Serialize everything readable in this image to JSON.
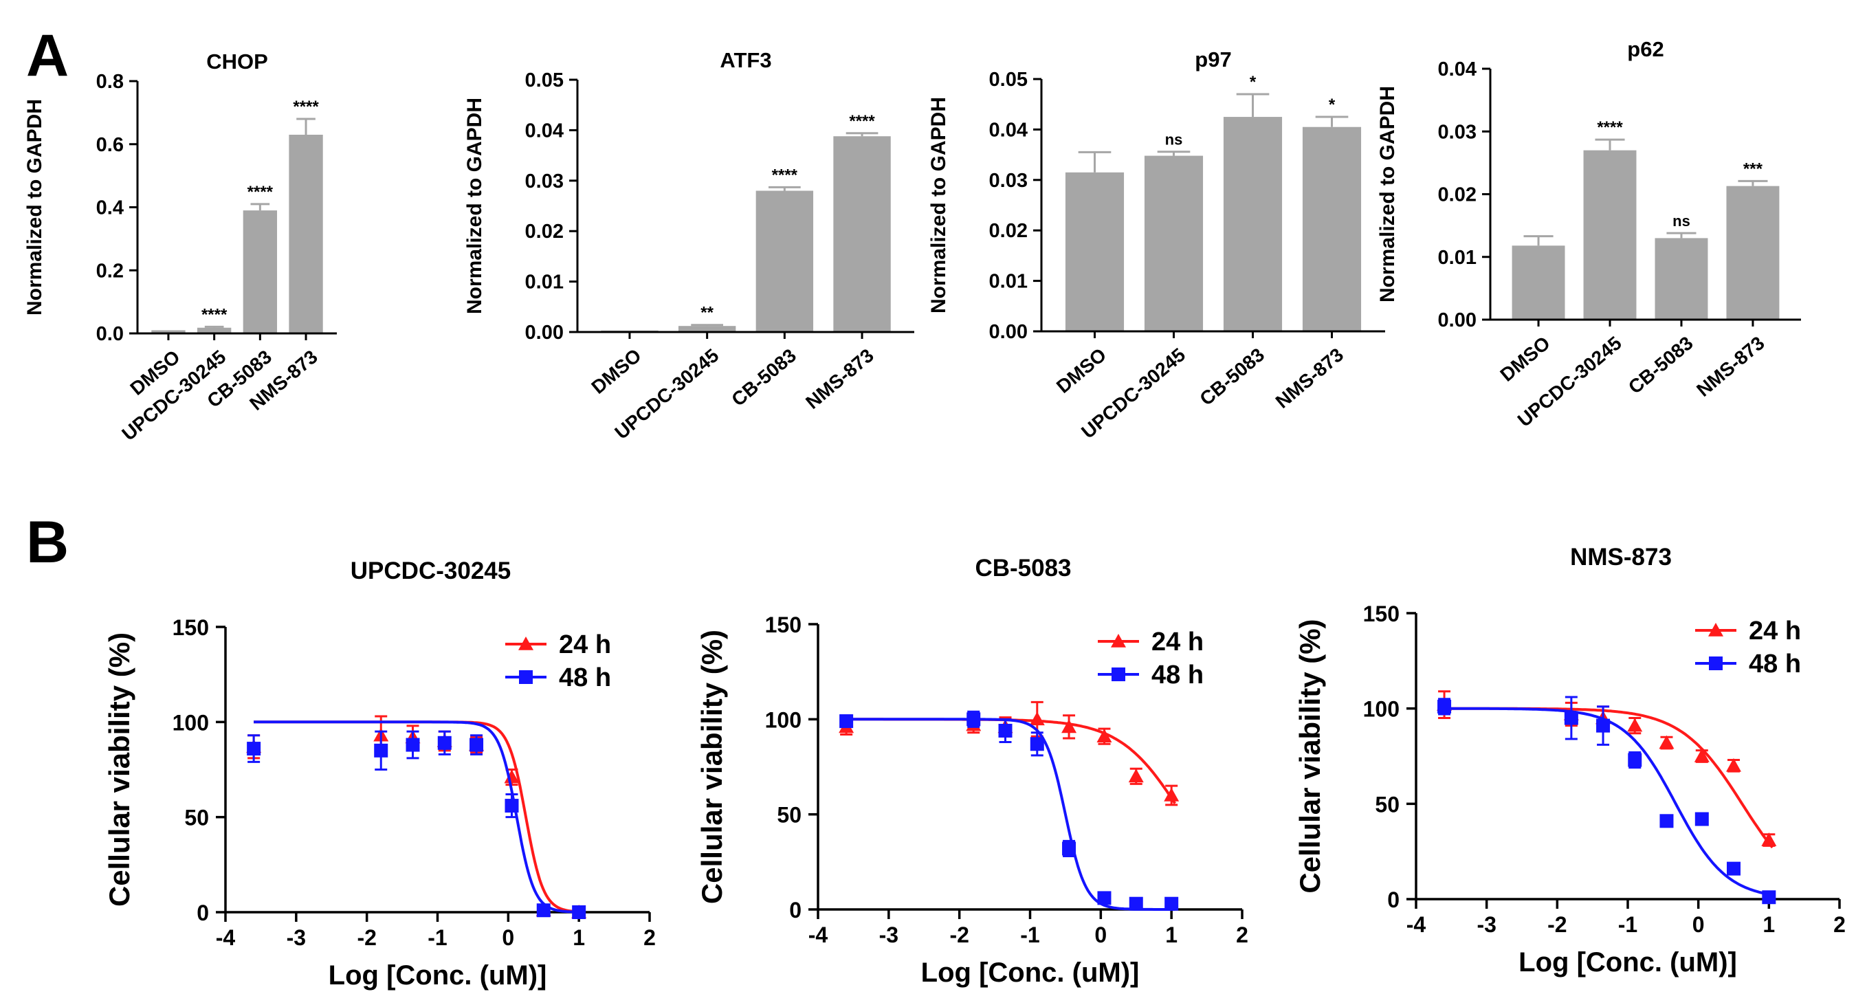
{
  "panel_labels": {
    "a": "A",
    "b": "B"
  },
  "colors": {
    "bar": "#a6a6a6",
    "axis": "#000000",
    "series_24h": "#ff1a1a",
    "series_48h": "#1414ff"
  },
  "chart_data": [
    {
      "type": "bar",
      "title": "CHOP",
      "ylabel": "Normalized to GAPDH",
      "xlabel": "",
      "categories": [
        "DMSO",
        "UPCDC-30245",
        "CB-5083",
        "NMS-873"
      ],
      "values": [
        0.01,
        0.018,
        0.39,
        0.63
      ],
      "errors": [
        0.0,
        0.003,
        0.02,
        0.05
      ],
      "significance": [
        "",
        "****",
        "****",
        "****"
      ],
      "ylim": [
        0,
        0.8
      ],
      "yticks": [
        0.0,
        0.2,
        0.4,
        0.6,
        0.8
      ],
      "ytick_labels": [
        "0.0",
        "0.2",
        "0.4",
        "0.6",
        "0.8"
      ]
    },
    {
      "type": "bar",
      "title": "ATF3",
      "ylabel": "Normalized to GAPDH",
      "xlabel": "",
      "categories": [
        "DMSO",
        "UPCDC-30245",
        "CB-5083",
        "NMS-873"
      ],
      "values": [
        0.0003,
        0.0012,
        0.028,
        0.0388
      ],
      "errors": [
        0.0,
        0.0002,
        0.0007,
        0.0006
      ],
      "significance": [
        "",
        "**",
        "****",
        "****"
      ],
      "ylim": [
        0,
        0.05
      ],
      "yticks": [
        0.0,
        0.01,
        0.02,
        0.03,
        0.04,
        0.05
      ],
      "ytick_labels": [
        "0.00",
        "0.01",
        "0.02",
        "0.03",
        "0.04",
        "0.05"
      ]
    },
    {
      "type": "bar",
      "title": "p97",
      "ylabel": "Normalized to GAPDH",
      "xlabel": "",
      "categories": [
        "DMSO",
        "UPCDC-30245",
        "CB-5083",
        "NMS-873"
      ],
      "values": [
        0.0315,
        0.0348,
        0.0425,
        0.0405
      ],
      "errors": [
        0.004,
        0.0008,
        0.0045,
        0.002
      ],
      "significance": [
        "",
        "ns",
        "*",
        "*"
      ],
      "ylim": [
        0,
        0.05
      ],
      "yticks": [
        0.0,
        0.01,
        0.02,
        0.03,
        0.04,
        0.05
      ],
      "ytick_labels": [
        "0.00",
        "0.01",
        "0.02",
        "0.03",
        "0.04",
        "0.05"
      ]
    },
    {
      "type": "bar",
      "title": "p62",
      "ylabel": "Normalized to GAPDH",
      "xlabel": "",
      "categories": [
        "DMSO",
        "UPCDC-30245",
        "CB-5083",
        "NMS-873"
      ],
      "values": [
        0.0118,
        0.027,
        0.013,
        0.0213
      ],
      "errors": [
        0.0015,
        0.0017,
        0.0008,
        0.0008
      ],
      "significance": [
        "",
        "****",
        "ns",
        "***"
      ],
      "ylim": [
        0,
        0.04
      ],
      "yticks": [
        0.0,
        0.01,
        0.02,
        0.03,
        0.04
      ],
      "ytick_labels": [
        "0.00",
        "0.01",
        "0.02",
        "0.03",
        "0.04"
      ]
    },
    {
      "type": "scatter",
      "title": "UPCDC-30245",
      "xlabel": "Log [Conc. (uM)]",
      "ylabel": "Cellular viability (%)",
      "xlim": [
        -4,
        2
      ],
      "ylim": [
        0,
        150
      ],
      "xticks": [
        -4,
        -3,
        -2,
        -1,
        0,
        1,
        2
      ],
      "yticks": [
        0,
        50,
        100,
        150
      ],
      "legend": [
        "24 h",
        "48 h"
      ],
      "series": [
        {
          "name": "24 h",
          "x": [
            -3.6,
            -1.8,
            -1.35,
            -0.9,
            -0.45,
            0.05,
            0.5,
            1.0
          ],
          "y": [
            87,
            93,
            92,
            90,
            88,
            71,
            1,
            0
          ],
          "err": [
            6,
            10,
            6,
            5,
            4,
            4,
            2,
            1
          ],
          "fit": {
            "top": 100,
            "bottom": 0,
            "logic50": 0.25,
            "hill": 3.5
          }
        },
        {
          "name": "48 h",
          "x": [
            -3.6,
            -1.8,
            -1.35,
            -0.9,
            -0.45,
            0.05,
            0.5,
            1.0
          ],
          "y": [
            86,
            85,
            88,
            89,
            88,
            56,
            1,
            0
          ],
          "err": [
            7,
            10,
            7,
            6,
            5,
            6,
            2,
            1
          ],
          "fit": {
            "top": 100,
            "bottom": 0,
            "logic50": 0.12,
            "hill": 3.5
          }
        }
      ]
    },
    {
      "type": "scatter",
      "title": "CB-5083",
      "xlabel": "Log [Conc. (uM)]",
      "ylabel": "Cellular viability (%)",
      "xlim": [
        -4,
        2
      ],
      "ylim": [
        0,
        150
      ],
      "xticks": [
        -4,
        -3,
        -2,
        -1,
        0,
        1,
        2
      ],
      "yticks": [
        0,
        50,
        100,
        150
      ],
      "legend": [
        "24 h",
        "48 h"
      ],
      "series": [
        {
          "name": "24 h",
          "x": [
            -3.6,
            -1.8,
            -1.35,
            -0.9,
            -0.45,
            0.05,
            0.5,
            1.0
          ],
          "y": [
            96,
            97,
            96,
            100,
            96,
            91,
            70,
            60
          ],
          "err": [
            4,
            4,
            5,
            9,
            6,
            4,
            4,
            5
          ],
          "fit": {
            "top": 100,
            "bottom": 0,
            "logic50": 1.15,
            "hill": 1.0
          }
        },
        {
          "name": "48 h",
          "x": [
            -3.6,
            -1.8,
            -1.35,
            -0.9,
            -0.45,
            0.05,
            0.5,
            1.0
          ],
          "y": [
            99,
            100,
            94,
            87,
            32,
            6,
            3,
            3
          ],
          "err": [
            3,
            4,
            6,
            6,
            4,
            2,
            1,
            1
          ],
          "fit": {
            "top": 100,
            "bottom": 0,
            "logic50": -0.5,
            "hill": 3.0
          }
        }
      ]
    },
    {
      "type": "scatter",
      "title": "NMS-873",
      "xlabel": "Log [Conc. (uM)]",
      "ylabel": "Cellular viability (%)",
      "xlim": [
        -4,
        2
      ],
      "ylim": [
        0,
        150
      ],
      "xticks": [
        -4,
        -3,
        -2,
        -1,
        0,
        1,
        2
      ],
      "yticks": [
        0,
        50,
        100,
        150
      ],
      "legend": [
        "24 h",
        "48 h"
      ],
      "series": [
        {
          "name": "24 h",
          "x": [
            -3.6,
            -1.8,
            -1.35,
            -0.9,
            -0.45,
            0.05,
            0.5,
            1.0
          ],
          "y": [
            102,
            97,
            95,
            91,
            82,
            75,
            70,
            31
          ],
          "err": [
            7,
            6,
            6,
            4,
            3,
            3,
            3,
            3
          ],
          "fit": {
            "top": 100,
            "bottom": 0,
            "logic50": 0.62,
            "hill": 1.0
          }
        },
        {
          "name": "48 h",
          "x": [
            -3.6,
            -1.8,
            -1.35,
            -0.9,
            -0.45,
            0.05,
            0.5,
            1.0
          ],
          "y": [
            101,
            95,
            91,
            73,
            41,
            42,
            16,
            1
          ],
          "err": [
            4,
            11,
            10,
            4,
            3,
            3,
            2,
            1
          ],
          "fit": {
            "top": 100,
            "bottom": 0,
            "logic50": -0.32,
            "hill": 1.2
          }
        }
      ]
    }
  ]
}
